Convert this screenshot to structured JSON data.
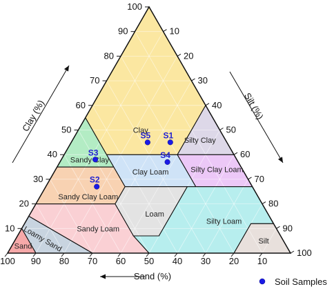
{
  "chart_data": {
    "type": "scatter",
    "subtype": "ternary soil texture triangle",
    "axes": {
      "clay": {
        "label": "Clay (%)",
        "ticks": [
          10,
          20,
          30,
          40,
          50,
          60,
          70,
          80,
          90,
          100
        ],
        "range": [
          0,
          100
        ]
      },
      "silt": {
        "label": "Silt (%)",
        "ticks": [
          10,
          20,
          30,
          40,
          50,
          60,
          70,
          80,
          90,
          100
        ],
        "range": [
          0,
          100
        ]
      },
      "sand": {
        "label": "Sand (%)",
        "ticks": [
          100,
          90,
          80,
          70,
          60,
          50,
          40,
          30,
          20,
          10
        ],
        "range": [
          0,
          100
        ]
      }
    },
    "grid": true,
    "legend": {
      "position": "bottom-right",
      "entries": [
        "Soil Samples"
      ]
    },
    "regions": [
      {
        "name": "Clay",
        "color": "#fbe7a1",
        "text": "Clay"
      },
      {
        "name": "Silty Clay",
        "color": "#ddd8e8",
        "text": "Silty Clay"
      },
      {
        "name": "Sandy Clay",
        "color": "#b3ecc4",
        "text": "Sandy Clay"
      },
      {
        "name": "Clay Loam",
        "color": "#cfe3f7",
        "text": "Clay Loam"
      },
      {
        "name": "Silty Clay Loam",
        "color": "#ecc8f7",
        "text": "Silty Clay Loam"
      },
      {
        "name": "Sandy Clay Loam",
        "color": "#f8d2b2",
        "text": "Sandy Clay Loam"
      },
      {
        "name": "Loam",
        "color": "#e3e3e3",
        "text": "Loam"
      },
      {
        "name": "Silty Loam",
        "color": "#b7eeee",
        "text": "Silty Loam"
      },
      {
        "name": "Sandy Loam",
        "color": "#fad0d4",
        "text": "Sandy Loam"
      },
      {
        "name": "Loamy Sand",
        "color": "#c8d4e0",
        "text": "Loamy Sand"
      },
      {
        "name": "Sand",
        "color": "#f7a9a9",
        "text": "Sand"
      },
      {
        "name": "Silt",
        "color": "#e8e0dc",
        "text": "Silt"
      }
    ],
    "series": [
      {
        "name": "Soil Samples",
        "color": "#1a1ae6",
        "points": [
          {
            "label": "S1",
            "sand": 20,
            "silt": 35,
            "clay": 45
          },
          {
            "label": "S2",
            "sand": 55,
            "silt": 18,
            "clay": 27
          },
          {
            "label": "S3",
            "sand": 50,
            "silt": 12,
            "clay": 38
          },
          {
            "label": "S4",
            "sand": 25,
            "silt": 38,
            "clay": 37
          },
          {
            "label": "S5",
            "sand": 28,
            "silt": 27,
            "clay": 45
          }
        ]
      }
    ]
  }
}
